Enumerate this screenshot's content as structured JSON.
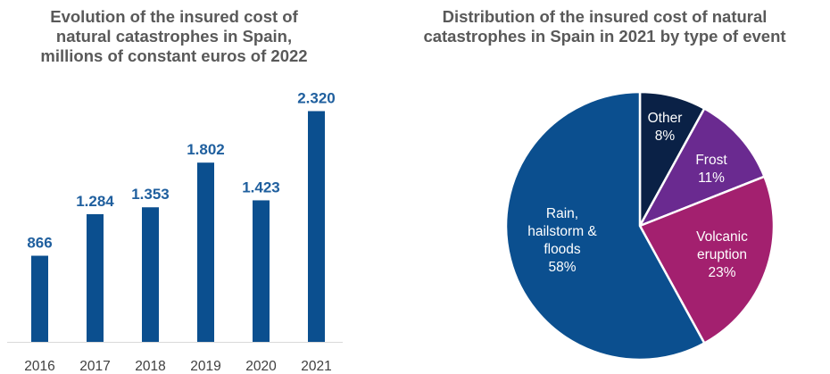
{
  "chart_data": [
    {
      "type": "bar",
      "title_lines": [
        "Evolution of the insured cost of",
        "natural catastrophes in Spain,",
        "millions of constant euros of 2022"
      ],
      "categories": [
        "2016",
        "2017",
        "2018",
        "2019",
        "2020",
        "2021"
      ],
      "values": [
        866,
        1284,
        1353,
        1802,
        1423,
        2320
      ],
      "value_labels": [
        "866",
        "1.284",
        "1.353",
        "1.802",
        "1.423",
        "2.320"
      ],
      "ylim": [
        0,
        2450
      ],
      "bar_color": "#0B4F8F",
      "label_color": "#1F5F9E",
      "grid": false
    },
    {
      "type": "pie",
      "title_lines": [
        "Distribution of the insured cost of natural",
        "catastrophes in Spain in 2021 by type of event"
      ],
      "slices": [
        {
          "name": "Other",
          "label_lines": [
            "Other",
            "8%"
          ],
          "value": 8,
          "color": "#0A2146"
        },
        {
          "name": "Frost",
          "label_lines": [
            "Frost",
            "11%"
          ],
          "value": 11,
          "color": "#6A2A90"
        },
        {
          "name": "Volcanic eruption",
          "label_lines": [
            "Volcanic",
            "eruption",
            "23%"
          ],
          "value": 23,
          "color": "#A3206F"
        },
        {
          "name": "Rain, hailstorm & floods",
          "label_lines": [
            "Rain,",
            "hailstorm &",
            "floods",
            "58%"
          ],
          "value": 58,
          "color": "#0B4F8F"
        }
      ]
    }
  ]
}
